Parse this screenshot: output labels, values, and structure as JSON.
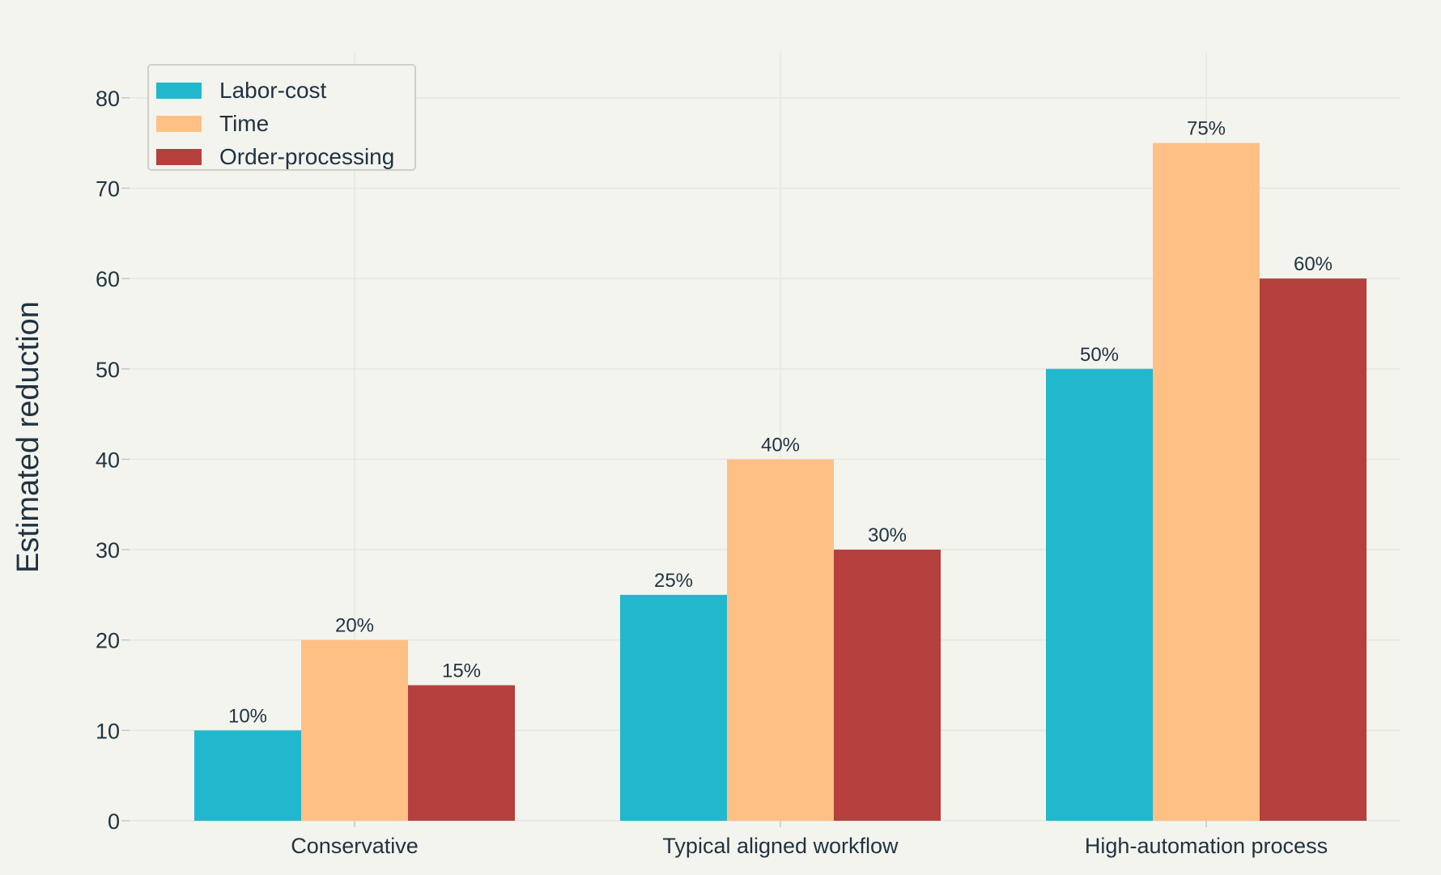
{
  "chart_data": {
    "type": "bar",
    "title": "",
    "xlabel": "",
    "ylabel": "Estimated reduction",
    "categories": [
      "Conservative",
      "Typical aligned workflow",
      "High-automation process"
    ],
    "series": [
      {
        "name": "Labor-cost",
        "values": [
          10,
          25,
          50
        ],
        "labels": [
          "10%",
          "25%",
          "50%"
        ],
        "color": "#21b8cd"
      },
      {
        "name": "Time",
        "values": [
          20,
          40,
          75
        ],
        "labels": [
          "20%",
          "40%",
          "75%"
        ],
        "color": "#ffc085"
      },
      {
        "name": "Order-processing",
        "values": [
          15,
          30,
          60
        ],
        "labels": [
          "15%",
          "30%",
          "60%"
        ],
        "color": "#b5403d"
      }
    ],
    "yticks": [
      "0",
      "10",
      "20",
      "30",
      "40",
      "50",
      "60",
      "70",
      "80"
    ],
    "ylim": [
      0,
      85
    ],
    "grid": true,
    "legend_position": "top-left"
  }
}
